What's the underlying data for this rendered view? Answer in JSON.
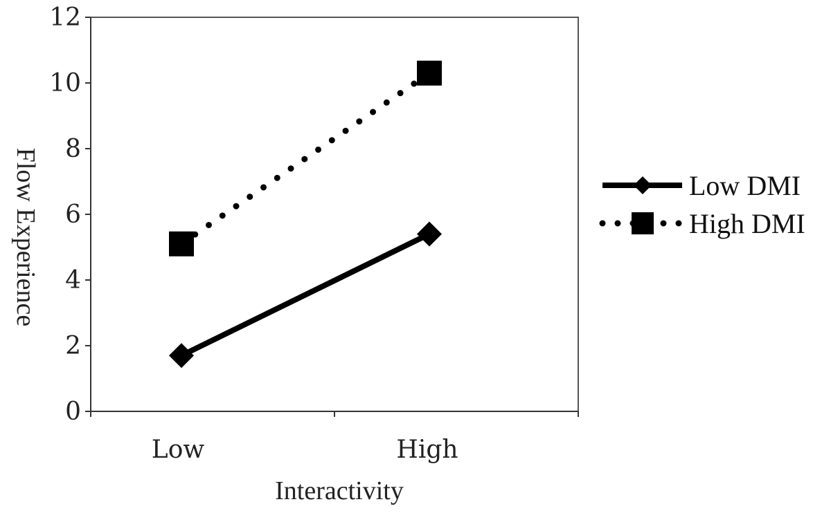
{
  "chart_data": {
    "type": "line",
    "categories": [
      "Low",
      "High"
    ],
    "xlabel": "Interactivity",
    "ylabel": "Flow Experience",
    "ylim": [
      0,
      12
    ],
    "yticks": [
      0,
      2,
      4,
      6,
      8,
      10,
      12
    ],
    "grid": false,
    "legend_position": "right",
    "series": [
      {
        "name": "Low DMI",
        "values": [
          1.7,
          5.4
        ],
        "line_style": "solid",
        "marker": "diamond",
        "color": "#000000"
      },
      {
        "name": "High DMI",
        "values": [
          5.1,
          10.3
        ],
        "line_style": "dotted",
        "marker": "square",
        "color": "#000000"
      }
    ]
  }
}
